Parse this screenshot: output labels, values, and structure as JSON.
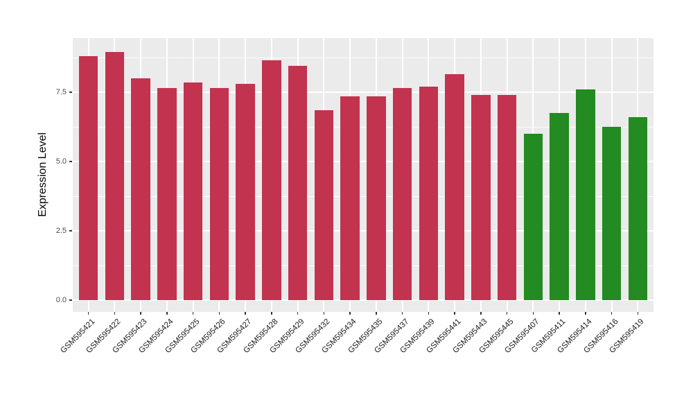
{
  "chart_data": {
    "type": "bar",
    "title": "",
    "xlabel": "",
    "ylabel": "Expression Level",
    "categories": [
      "GSM595421",
      "GSM595422",
      "GSM595423",
      "GSM595424",
      "GSM595425",
      "GSM595426",
      "GSM595427",
      "GSM595428",
      "GSM595429",
      "GSM595432",
      "GSM595434",
      "GSM595435",
      "GSM595437",
      "GSM595439",
      "GSM595441",
      "GSM595443",
      "GSM595445",
      "GSM595407",
      "GSM595411",
      "GSM595414",
      "GSM595416",
      "GSM595419"
    ],
    "values": [
      8.8,
      8.95,
      8.0,
      7.65,
      7.85,
      7.65,
      7.8,
      8.65,
      8.45,
      6.85,
      7.35,
      7.35,
      7.65,
      7.7,
      8.15,
      7.4,
      7.4,
      6.0,
      6.75,
      7.6,
      6.25,
      6.6
    ],
    "bar_groups": [
      "red",
      "red",
      "red",
      "red",
      "red",
      "red",
      "red",
      "red",
      "red",
      "red",
      "red",
      "red",
      "red",
      "red",
      "red",
      "red",
      "red",
      "green",
      "green",
      "green",
      "green",
      "green"
    ],
    "palette": {
      "red": "#C2334F",
      "green": "#238B21"
    },
    "ylim": [
      -0.42,
      9.46
    ],
    "yticks": [
      0.0,
      2.5,
      5.0,
      7.5
    ],
    "ytick_labels": [
      "0.0",
      "2.5",
      "5.0",
      "7.5"
    ],
    "yminor": [
      1.25,
      3.75,
      6.25,
      8.75
    ],
    "grid": true,
    "legend": false
  },
  "style": {
    "panel_bg": "#EBEBEB",
    "grid_color": "#FFFFFF",
    "axis_text_color": "#4D4D4D",
    "tick_color": "#333333",
    "background": "#FFFFFF"
  }
}
